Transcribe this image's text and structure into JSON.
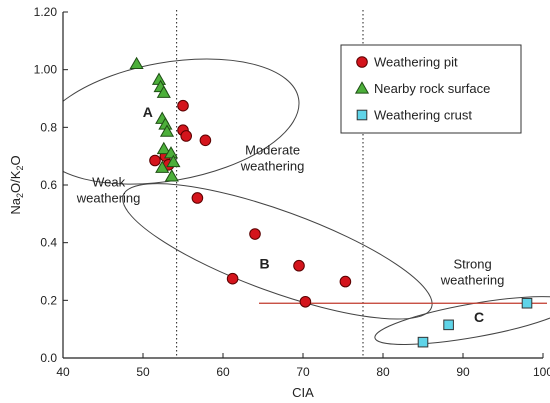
{
  "chart_data": {
    "type": "scatter",
    "xlabel": "CIA",
    "ylabel": {
      "main": "Na",
      "sub1": "2",
      "mid": "O/K",
      "sub2": "2",
      "end": "O"
    },
    "xlim": [
      40,
      100
    ],
    "ylim": [
      0,
      1.2
    ],
    "xticks": [
      "40",
      "50",
      "60",
      "70",
      "80",
      "90",
      "100"
    ],
    "yticks": [
      "0.0",
      "0.2",
      "0.4",
      "0.6",
      "0.8",
      "1.00",
      "1.20"
    ],
    "grid": false,
    "legend": "top-right",
    "series": [
      {
        "name": "Weathering pit",
        "marker": "circle",
        "color": "#d4141c",
        "points": [
          [
            51.5,
            0.685
          ],
          [
            52.8,
            0.7
          ],
          [
            53.2,
            0.67
          ],
          [
            55.0,
            0.875
          ],
          [
            55.0,
            0.79
          ],
          [
            55.4,
            0.77
          ],
          [
            57.8,
            0.755
          ],
          [
            56.8,
            0.555
          ],
          [
            64.0,
            0.43
          ],
          [
            61.2,
            0.275
          ],
          [
            69.5,
            0.32
          ],
          [
            70.3,
            0.195
          ],
          [
            75.3,
            0.265
          ]
        ]
      },
      {
        "name": "Nearby rock surface",
        "marker": "triangle",
        "color": "#4caf3a",
        "points": [
          [
            49.2,
            1.02
          ],
          [
            52.0,
            0.965
          ],
          [
            52.2,
            0.94
          ],
          [
            52.6,
            0.92
          ],
          [
            52.4,
            0.83
          ],
          [
            52.8,
            0.81
          ],
          [
            53.0,
            0.785
          ],
          [
            52.6,
            0.725
          ],
          [
            53.5,
            0.71
          ],
          [
            53.8,
            0.68
          ],
          [
            52.4,
            0.66
          ],
          [
            53.6,
            0.63
          ]
        ]
      },
      {
        "name": "Weathering crust",
        "marker": "square",
        "color": "#5fd4e8",
        "points": [
          [
            85.0,
            0.055
          ],
          [
            88.2,
            0.115
          ],
          [
            98.0,
            0.19
          ]
        ]
      }
    ],
    "vertical_lines": [
      54.2,
      77.5
    ],
    "reference_line": {
      "y": 0.19,
      "x_from": 64.5,
      "x_to": 100.5,
      "color": "#c0392b"
    },
    "ellipses": [
      {
        "label": "A",
        "cx": 53.2,
        "cy": 0.82,
        "rx": 16.5,
        "ry": 0.205,
        "angle": -10
      },
      {
        "label": "B",
        "cx": 66.8,
        "cy": 0.37,
        "rx": 20.5,
        "ry": 0.14,
        "angle": 20
      },
      {
        "label": "C",
        "cx": 91.3,
        "cy": 0.13,
        "rx": 12.5,
        "ry": 0.058,
        "angle": -10
      }
    ],
    "annotations": [
      {
        "text": "A",
        "x": 50.6,
        "y": 0.835,
        "kind": "letter"
      },
      {
        "text": "B",
        "x": 65.2,
        "y": 0.31,
        "kind": "letter"
      },
      {
        "text": "C",
        "x": 92.0,
        "y": 0.125,
        "kind": "letter"
      },
      {
        "text": "Weak",
        "x": 45.7,
        "y": 0.595,
        "kind": "text"
      },
      {
        "text": "weathering",
        "x": 45.7,
        "y": 0.54,
        "kind": "text"
      },
      {
        "text": "Moderate",
        "x": 66.2,
        "y": 0.705,
        "kind": "text"
      },
      {
        "text": "weathering",
        "x": 66.2,
        "y": 0.65,
        "kind": "text"
      },
      {
        "text": "Strong",
        "x": 91.2,
        "y": 0.31,
        "kind": "text"
      },
      {
        "text": "weathering",
        "x": 91.2,
        "y": 0.255,
        "kind": "text"
      }
    ]
  }
}
